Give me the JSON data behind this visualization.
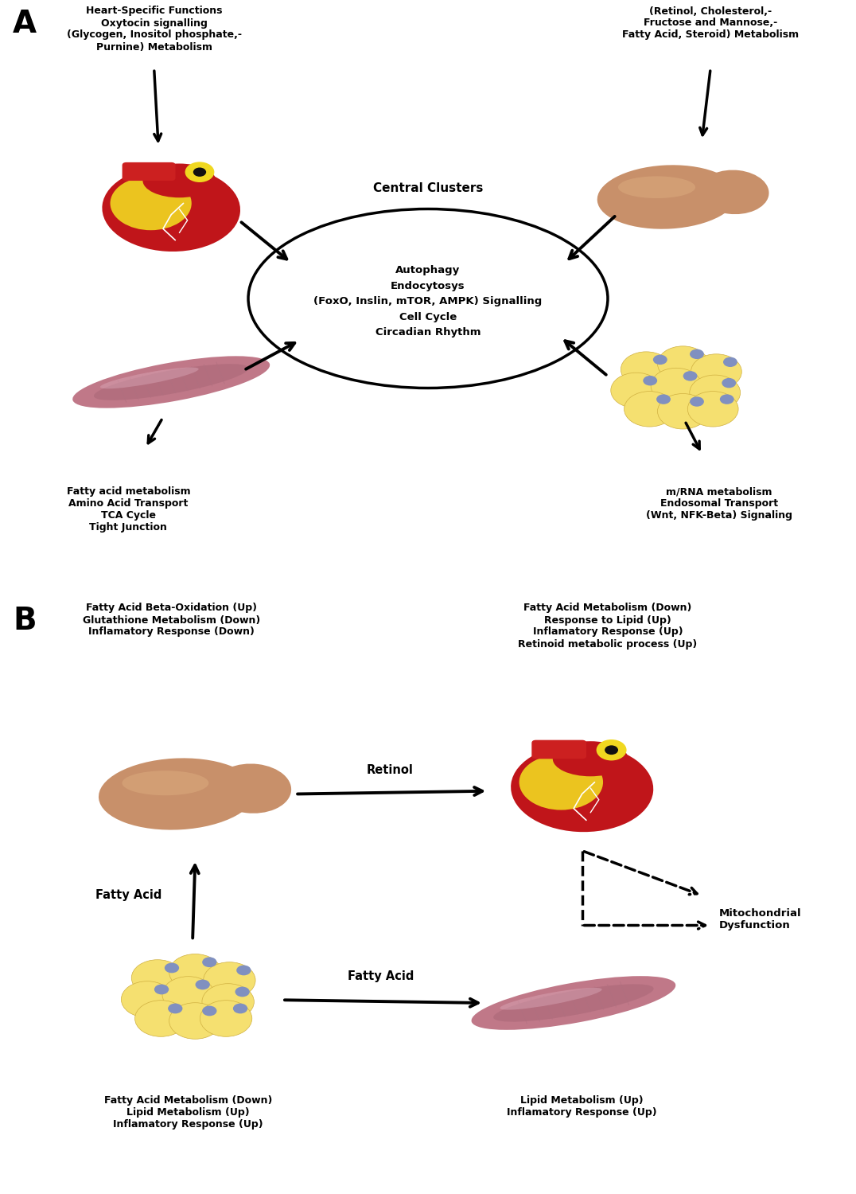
{
  "panel_A_label": "A",
  "panel_B_label": "B",
  "bg_color": "#ffffff",
  "A_central_title": "Central Clusters",
  "A_central_lines": [
    "Autophagy",
    "Endocytosys",
    "(FoxO, Inslin, mTOR, AMPK) Signalling",
    "Cell Cycle",
    "Circadian Rhythm"
  ],
  "A_heart_label": [
    "Heart-Specific Functions",
    "Oxytocin signalling",
    "(Glycogen, Inositol phosphate,-",
    "Purnine) Metabolism"
  ],
  "A_liver_label": [
    "(Retinol, Cholesterol,-",
    "Fructose and Mannose,-",
    "Fatty Acid, Steroid) Metabolism"
  ],
  "A_muscle_label": [
    "Fatty acid metabolism",
    "Amino Acid Transport",
    "TCA Cycle",
    "Tight Junction"
  ],
  "A_fat_label": [
    "m/RNA metabolism",
    "Endosomal Transport",
    "(Wnt, NFK-Beta) Signaling"
  ],
  "B_liver_label_top": [
    "Fatty Acid Beta-Oxidation (Up)",
    "Glutathione Metabolism (Down)",
    "Inflamatory Response (Down)"
  ],
  "B_heart_label_top": [
    "Fatty Acid Metabolism (Down)",
    "Response to Lipid (Up)",
    "Inflamatory Response (Up)",
    "Retinoid metabolic process (Up)"
  ],
  "B_fat_label_bottom": [
    "Fatty Acid Metabolism (Down)",
    "Lipid Metabolism (Up)",
    "Inflamatory Response (Up)"
  ],
  "B_muscle_label_bottom": [
    "Lipid Metabolism (Up)",
    "Inflamatory Response (Up)"
  ],
  "B_retinol_label": "Retinol",
  "B_fattyacid1_label": "Fatty Acid",
  "B_fattyacid2_label": "Fatty Acid",
  "B_mito_label": "Mitochondrial\nDysfunction",
  "heart_color_main": "#c0151a",
  "heart_color_yellow": "#f0d820",
  "heart_color_aorta": "#c0151a",
  "heart_color_red_band": "#cc1111",
  "liver_color_main": "#c8906a",
  "liver_color_highlight": "#d9a87c",
  "muscle_color_main": "#c07888",
  "muscle_color_dark": "#a06070",
  "fat_color_main": "#f5e070",
  "fat_color_dot": "#8090c0"
}
